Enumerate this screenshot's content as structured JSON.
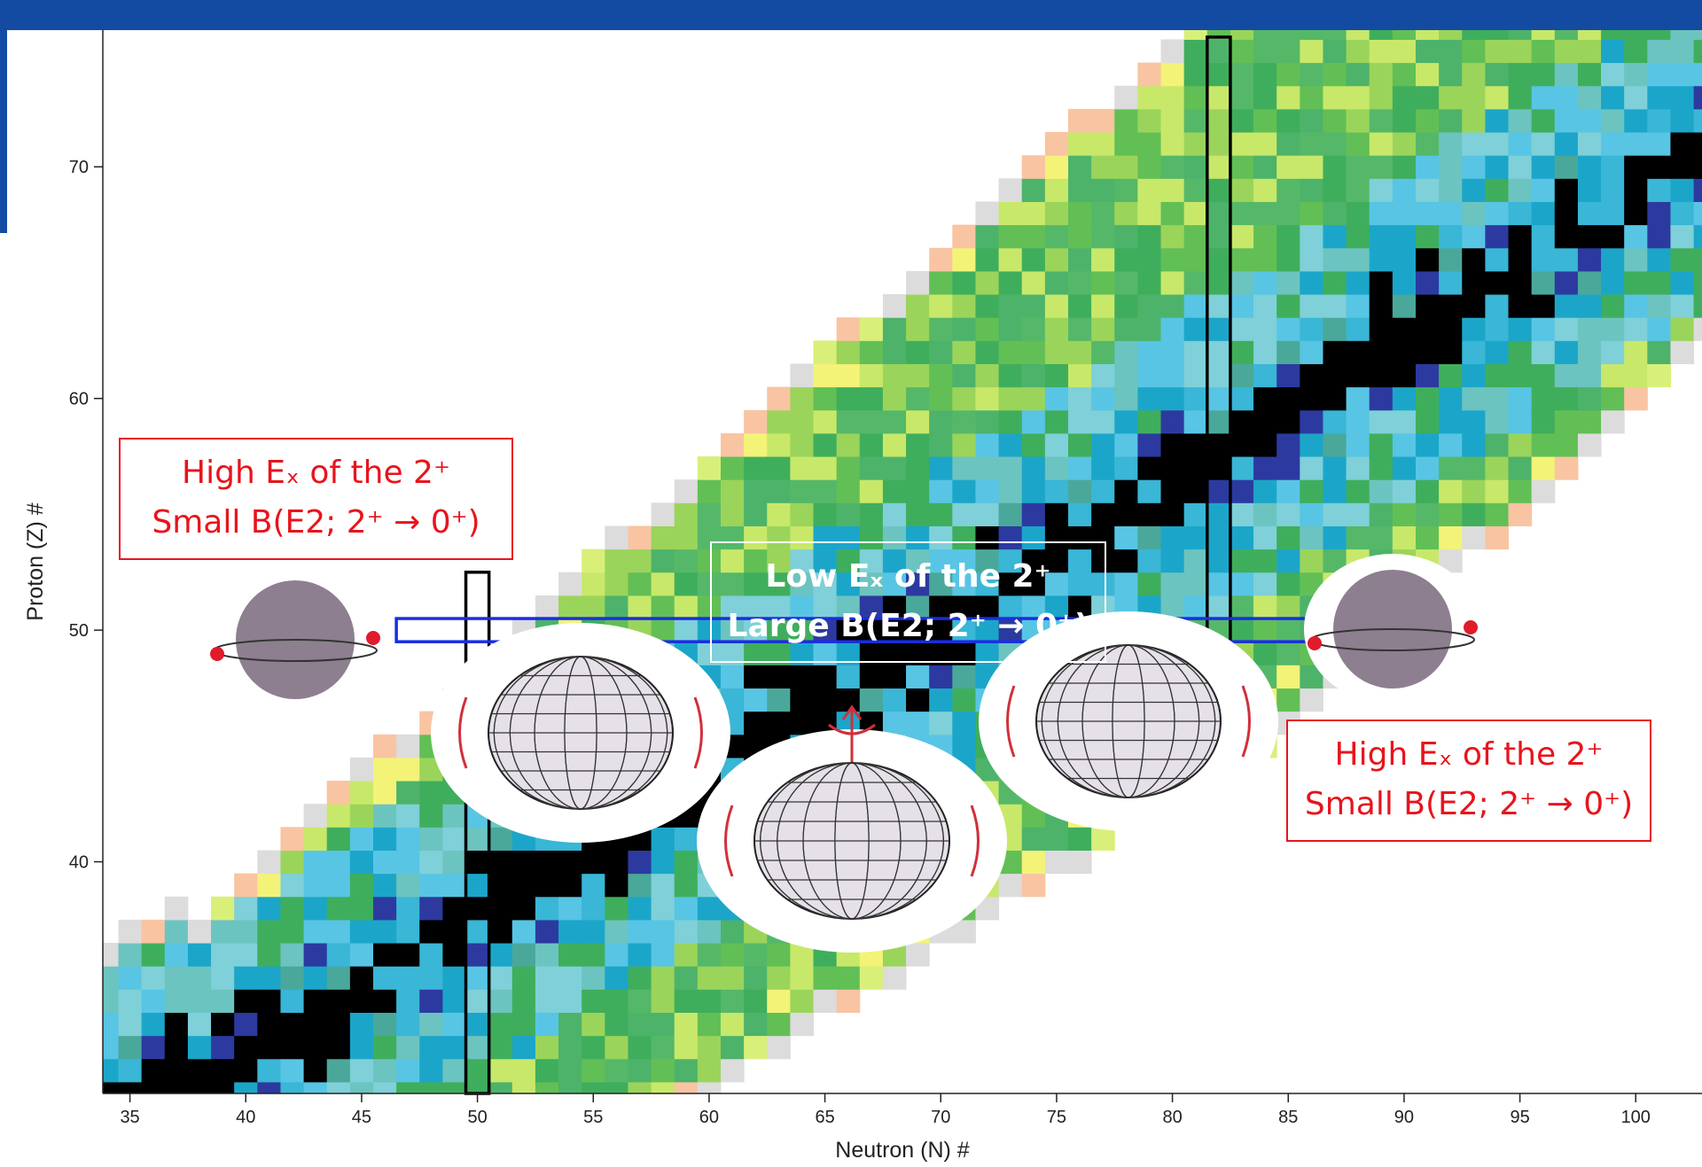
{
  "chart_data": {
    "type": "heatmap",
    "x_label": "Neutron (N) #",
    "y_label": "Proton (Z) #",
    "xlim": [
      33.83,
      102.86
    ],
    "ylim": [
      30,
      75.9
    ],
    "xticks": [
      35,
      40,
      45,
      50,
      55,
      60,
      65,
      70,
      75,
      80,
      85,
      90,
      95,
      100
    ],
    "yticks": [
      40,
      50,
      60,
      70
    ],
    "outlines": [
      {
        "color": "#000000",
        "xlim": [
          49.5,
          50.5
        ],
        "ylim": [
          30,
          52.5
        ]
      },
      {
        "color": "#000000",
        "xlim": [
          81.5,
          82.5
        ],
        "ylim": [
          46.3,
          75.6
        ]
      },
      {
        "color": "#1a2ee0",
        "xlim": [
          46.5,
          87.5
        ],
        "ylim": [
          49.5,
          50.5
        ]
      }
    ],
    "annotations": [
      {
        "lines": [
          "High Eₓ of the 2⁺",
          "Small B(E2; 2⁺ → 0⁺)"
        ],
        "color": "#e8141c"
      },
      {
        "lines": [
          "Low Eₓ of the 2⁺",
          "Large B(E2; 2⁺ → 0⁺)"
        ],
        "color": "#ffffff"
      },
      {
        "lines": [
          "High Eₓ of the 2⁺",
          "Small B(E2; 2⁺ → 0⁺)"
        ],
        "color": "#e8141c"
      }
    ]
  }
}
